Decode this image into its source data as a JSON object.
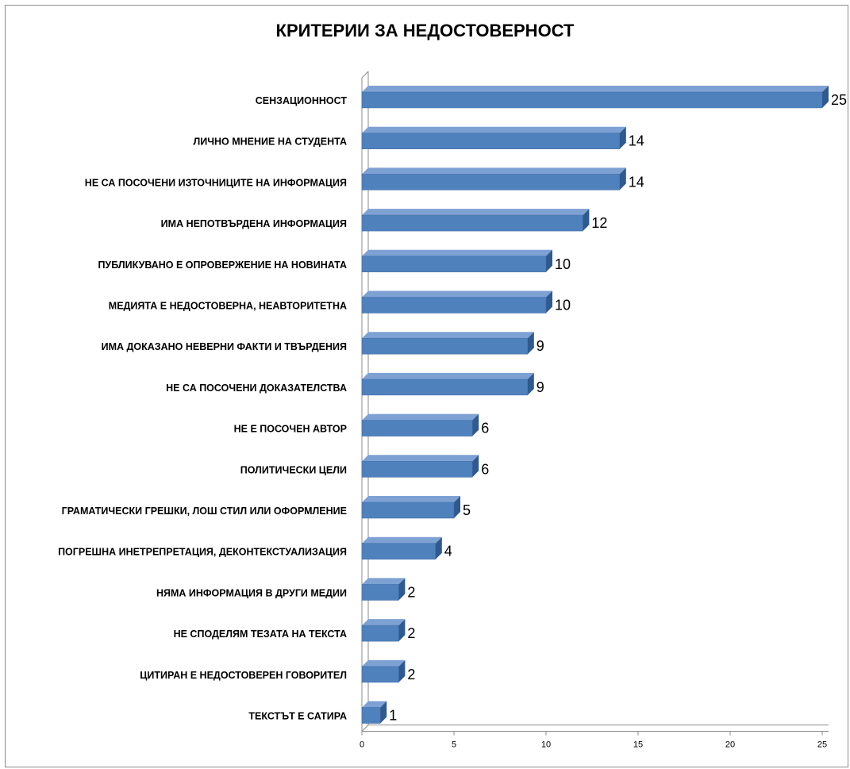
{
  "chart_data": {
    "type": "bar",
    "orientation": "horizontal",
    "title": "КРИТЕРИИ ЗА НЕДОСТОВЕРНОСТ",
    "categories": [
      "СЕНЗАЦИОННОСТ",
      "ЛИЧНО МНЕНИЕ НА СТУДЕНТА",
      "НЕ СА ПОСОЧЕНИ ИЗТОЧНИЦИТЕ НА ИНФОРМАЦИЯ",
      "ИМА НЕПОТВЪРДЕНА ИНФОРМАЦИЯ",
      "ПУБЛИКУВАНО Е ОПРОВЕРЖЕНИЕ НА НОВИНАТА",
      "МЕДИЯТА Е НЕДОСТОВЕРНА, НЕАВТОРИТЕТНА",
      "ИМА ДОКАЗАНО НЕВЕРНИ ФАКТИ И ТВЪРДЕНИЯ",
      "НЕ СА ПОСОЧЕНИ ДОКАЗАТЕЛСТВА",
      "НЕ Е ПОСОЧЕН АВТОР",
      "ПОЛИТИЧЕСКИ ЦЕЛИ",
      "ГРАМАТИЧЕСКИ ГРЕШКИ, ЛОШ СТИЛ ИЛИ ОФОРМЛЕНИЕ",
      "ПОГРЕШНА ИНЕТРЕПРЕТАЦИЯ, ДЕКОНТЕКСТУАЛИЗАЦИЯ",
      "НЯМА ИНФОРМАЦИЯ В ДРУГИ МЕДИИ",
      "НЕ СПОДЕЛЯМ ТЕЗАТА НА ТЕКСТА",
      "ЦИТИРАН Е НЕДОСТОВЕРЕН ГОВОРИТЕЛ",
      "ТЕКСТЪТ Е САТИРА"
    ],
    "values": [
      25,
      14,
      14,
      12,
      10,
      10,
      9,
      9,
      6,
      6,
      5,
      4,
      2,
      2,
      2,
      1
    ],
    "xlim": [
      0,
      25
    ],
    "xticks": [
      0,
      5,
      10,
      15,
      20,
      25
    ],
    "grid": false,
    "legend": "none",
    "style": "3d-bar",
    "colors": {
      "bar_front": "#4f81bd",
      "bar_top": "#7ea1d4",
      "bar_side": "#2f5a8f",
      "axis": "#8c8c8c"
    }
  }
}
